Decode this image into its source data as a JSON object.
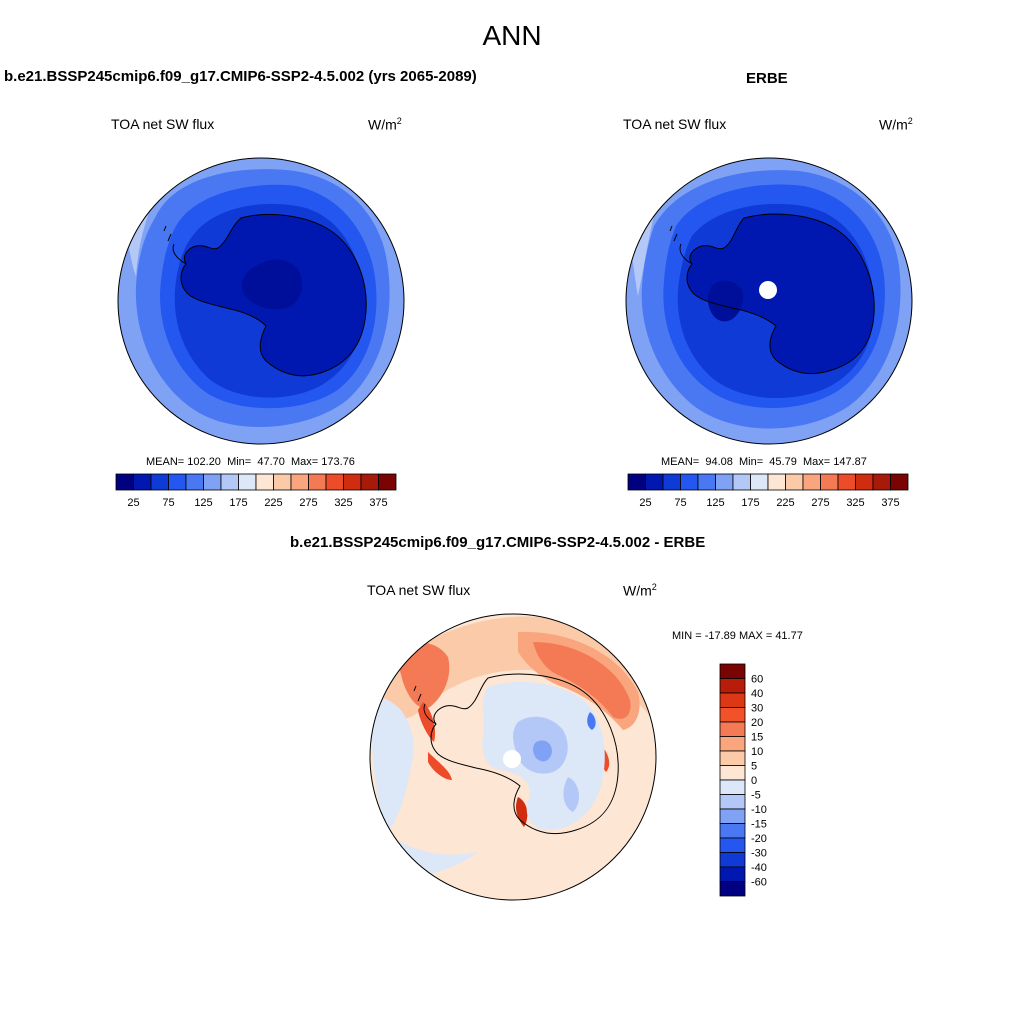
{
  "title": "ANN",
  "panels": [
    {
      "id": "model",
      "title": "b.e21.BSSP245cmip6.f09_g17.CMIP6-SSP2-4.5.002 (yrs 2065-2089)",
      "var_label": "TOA net SW flux",
      "units": "W/m",
      "units_sup": "2",
      "stats": {
        "mean_label": "MEAN=",
        "mean": "102.20",
        "min_label": "Min=",
        "min": "47.70",
        "max_label": "Max=",
        "max": "173.76"
      }
    },
    {
      "id": "obs",
      "title": "ERBE",
      "var_label": "TOA net SW flux",
      "units": "W/m",
      "units_sup": "2",
      "stats": {
        "mean_label": "MEAN=",
        "mean": "94.08",
        "min_label": "Min=",
        "min": "45.79",
        "max_label": "Max=",
        "max": "147.87"
      }
    },
    {
      "id": "diff",
      "title": "b.e21.BSSP245cmip6.f09_g17.CMIP6-SSP2-4.5.002 - ERBE",
      "var_label": "TOA net SW flux",
      "units": "W/m",
      "units_sup": "2",
      "stats_text": "MIN = -17.89 MAX =  41.77"
    }
  ],
  "colorbars": {
    "field": {
      "colors": [
        "#000080",
        "#0018b0",
        "#0f3ad6",
        "#2456f0",
        "#4a78f2",
        "#7fa2f5",
        "#b3c8f7",
        "#dce7f8",
        "#fde6d4",
        "#fbcaa8",
        "#f9a57e",
        "#f47a56",
        "#ec4c2a",
        "#cf2c10",
        "#a71a0a",
        "#7a0404"
      ],
      "tick_labels": [
        "25",
        "75",
        "125",
        "175",
        "225",
        "275",
        "325",
        "375"
      ]
    },
    "diff": {
      "colors": [
        "#7a0404",
        "#b81c0b",
        "#dc3815",
        "#f2522a",
        "#f47a56",
        "#f9a57e",
        "#fbcaa8",
        "#fde6d4",
        "#dce7f8",
        "#b3c8f7",
        "#7fa2f5",
        "#4a78f2",
        "#2456f0",
        "#0f3ad6",
        "#0018b0",
        "#000080"
      ],
      "tick_labels": [
        "60",
        "40",
        "30",
        "20",
        "15",
        "10",
        "5",
        "0",
        "-5",
        "-10",
        "-15",
        "-20",
        "-30",
        "-40",
        "-60"
      ]
    }
  },
  "map_colors": {
    "land_dark": "#0018b0",
    "land_darkest": "#000f9a",
    "ring_1": "#0f3ad6",
    "ring_2": "#2456f0",
    "ring_3": "#4a78f2",
    "ring_4": "#7fa2f5",
    "ring_5": "#b3c8f7",
    "diff_base": "#fde6d4",
    "diff_red_1": "#fbcaa8",
    "diff_red_2": "#f9a57e",
    "diff_red_3": "#f47a56",
    "diff_red_4": "#ec4c2a",
    "diff_red_5": "#cf2c10",
    "diff_blue_1": "#dce7f8",
    "diff_blue_2": "#b3c8f7",
    "diff_blue_3": "#7fa2f5",
    "diff_blue_4": "#4a78f2"
  }
}
